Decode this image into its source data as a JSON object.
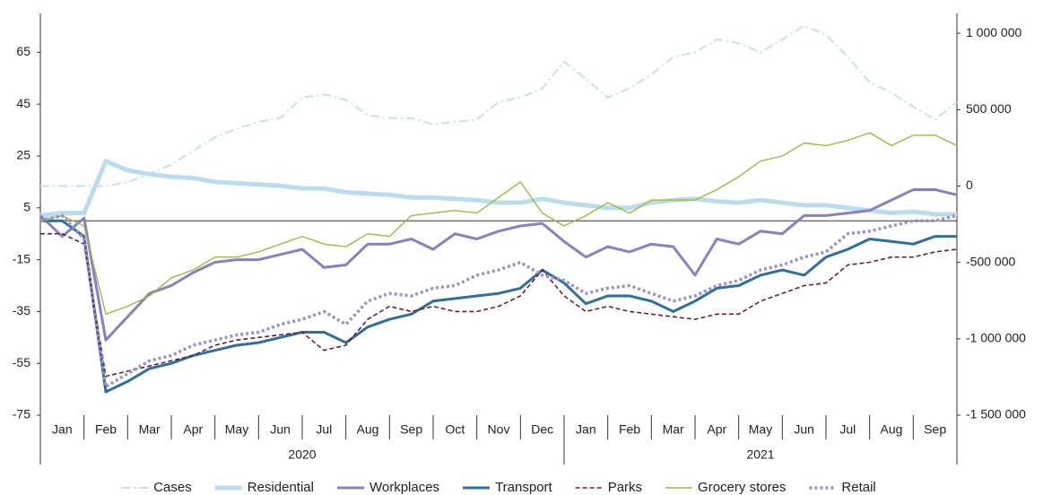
{
  "chart_data": {
    "type": "line",
    "groups": [
      {
        "label": "2020",
        "categories": [
          "Jan",
          "Feb",
          "Mar",
          "Apr",
          "May",
          "Jun",
          "Jul",
          "Aug",
          "Sep",
          "Oct",
          "Nov",
          "Dec"
        ]
      },
      {
        "label": "2021",
        "categories": [
          "Jan",
          "Feb",
          "Mar",
          "Apr",
          "May",
          "Jun",
          "Jul",
          "Aug",
          "Sep"
        ]
      }
    ],
    "xlim": [
      0,
      21
    ],
    "x": [
      0,
      0.5,
      1,
      1.5,
      2,
      2.5,
      3,
      3.5,
      4,
      4.5,
      5,
      5.5,
      6,
      6.5,
      7,
      7.5,
      8,
      8.5,
      9,
      9.5,
      10,
      10.5,
      11,
      11.5,
      12,
      12.5,
      13,
      13.5,
      14,
      14.5,
      15,
      15.5,
      16,
      16.5,
      17,
      17.5,
      18,
      18.5,
      19,
      19.5,
      20,
      20.5,
      21
    ],
    "ylim": [
      -75,
      80
    ],
    "yticks": [
      -75,
      -55,
      -35,
      -15,
      5,
      25,
      45,
      65
    ],
    "y2lim": [
      -1500000,
      1130000
    ],
    "y2ticks": [
      {
        "value": -1500000,
        "label": "-1 500 000"
      },
      {
        "value": -1000000,
        "label": "-1 000 000"
      },
      {
        "value": -500000,
        "label": "-500 000"
      },
      0,
      {
        "value": 500000,
        "label": "500 000"
      },
      {
        "value": 1000000,
        "label": "1 000 000"
      }
    ],
    "series": [
      {
        "name": "Cases",
        "color": "#c3e1f1",
        "style": "dashdot",
        "axis": "y2",
        "values": [
          0,
          0,
          0,
          0,
          25000,
          80000,
          140000,
          230000,
          320000,
          375000,
          420000,
          445000,
          580000,
          600000,
          565000,
          465000,
          445000,
          445000,
          405000,
          420000,
          435000,
          550000,
          580000,
          640000,
          815000,
          700000,
          580000,
          640000,
          730000,
          845000,
          875000,
          960000,
          935000,
          875000,
          960000,
          1050000,
          990000,
          845000,
          680000,
          610000,
          520000,
          435000,
          550000
        ]
      },
      {
        "name": "Residential",
        "color": "#b9dcef",
        "style": "thick",
        "values": [
          2,
          3,
          3,
          23,
          19.5,
          18,
          17,
          16.5,
          15,
          14.5,
          14,
          13.5,
          12.5,
          12.5,
          11,
          10.5,
          10,
          9,
          9,
          8.5,
          8,
          7,
          7,
          8.5,
          7,
          6,
          5,
          5,
          7,
          8,
          8.5,
          7.5,
          7,
          8,
          7,
          6,
          6,
          5,
          4,
          3,
          3.5,
          2.5,
          2.5
        ]
      },
      {
        "name": "Workplaces",
        "color": "#8a7fc3",
        "style": "medium",
        "values": [
          2,
          -6,
          1,
          -46,
          -37,
          -28,
          -25,
          -20,
          -16,
          -15,
          -15,
          -13,
          -11,
          -18,
          -17,
          -9,
          -9,
          -7,
          -11,
          -5,
          -7,
          -4,
          -2,
          -1,
          -8,
          -14,
          -10,
          -12,
          -9,
          -10,
          -21,
          -7,
          -9,
          -4,
          -5,
          2,
          2,
          3,
          4,
          8,
          12,
          12,
          10
        ]
      },
      {
        "name": "Transport",
        "color": "#2f6f9f",
        "style": "medium",
        "values": [
          0,
          0,
          -6,
          -66,
          -62,
          -57,
          -55,
          -52,
          -50,
          -48,
          -47,
          -45,
          -43,
          -43,
          -47,
          -41,
          -38,
          -36,
          -31,
          -30,
          -29,
          -28,
          -26,
          -19,
          -24,
          -32,
          -29,
          -29,
          -31,
          -35,
          -31,
          -26,
          -25,
          -21,
          -19,
          -21,
          -14,
          -11,
          -7,
          -8,
          -9,
          -6,
          -6
        ]
      },
      {
        "name": "Parks",
        "color": "#6d1b41",
        "style": "dashed",
        "values": [
          -5,
          -5,
          -9,
          -60,
          -58,
          -56,
          -54,
          -52,
          -48,
          -46,
          -45,
          -44,
          -43,
          -50,
          -48,
          -38,
          -33,
          -35,
          -33,
          -35,
          -35,
          -33,
          -29,
          -19,
          -29,
          -35,
          -33,
          -35,
          -36,
          -37,
          -38,
          -36,
          -36,
          -31,
          -28,
          -25,
          -24,
          -17,
          -16,
          -14,
          -14,
          -12,
          -11
        ]
      },
      {
        "name": "Grocery stores",
        "color": "#9dbb3c",
        "style": "thin",
        "values": [
          0,
          2,
          -2,
          -36,
          -33,
          -29,
          -22,
          -19,
          -14,
          -14,
          -12,
          -9,
          -6,
          -9,
          -10,
          -5,
          -6,
          2,
          3,
          4,
          3,
          9,
          15,
          3,
          -2,
          2,
          7,
          3,
          8,
          8,
          8,
          12,
          17,
          23,
          25,
          30,
          29,
          31,
          34,
          29,
          33,
          33,
          29
        ]
      },
      {
        "name": "Retail",
        "color": "#9a8fd1",
        "style": "dotted",
        "values": [
          0,
          2,
          -7,
          -64,
          -59,
          -54,
          -52,
          -48,
          -46,
          -44,
          -43,
          -40,
          -38,
          -35,
          -40,
          -31,
          -28,
          -29,
          -26,
          -25,
          -21,
          -19,
          -16,
          -21,
          -23,
          -28,
          -26,
          -25,
          -28,
          -31,
          -29,
          -25,
          -23,
          -19,
          -17,
          -14,
          -12,
          -5,
          -4,
          -2,
          0,
          0,
          2
        ]
      }
    ]
  }
}
